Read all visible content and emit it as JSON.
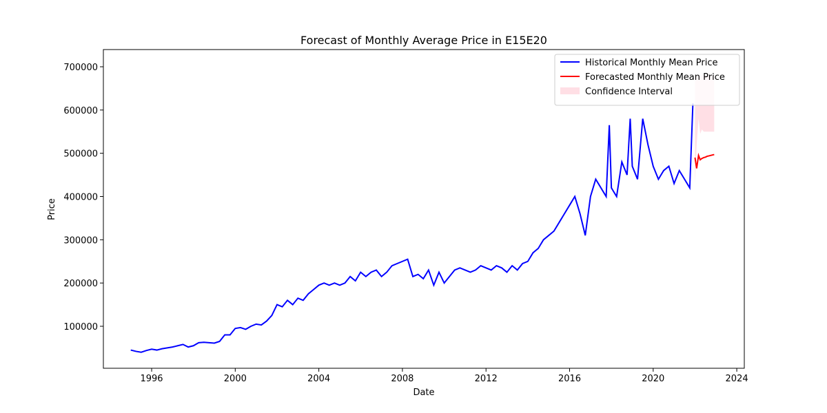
{
  "chart_data": {
    "type": "line",
    "title": "Forecast of Monthly Average Price in E15E20",
    "x_label": "Date",
    "y_label": "Price",
    "xlim": [
      1993.69,
      2024.36
    ],
    "ylim": [
      2900,
      739800
    ],
    "xticks": [
      1996,
      2000,
      2004,
      2008,
      2012,
      2016,
      2020,
      2024
    ],
    "yticks": [
      100000,
      200000,
      300000,
      400000,
      500000,
      600000,
      700000
    ],
    "legend": "upper right",
    "series": [
      {
        "name": "Historical Monthly Mean Price",
        "color": "#0000ff",
        "x": [
          1995.0,
          1995.25,
          1995.5,
          1995.75,
          1996.0,
          1996.25,
          1996.5,
          1996.75,
          1997.0,
          1997.25,
          1997.5,
          1997.75,
          1998.0,
          1998.25,
          1998.5,
          1998.75,
          1999.0,
          1999.25,
          1999.5,
          1999.75,
          2000.0,
          2000.25,
          2000.5,
          2000.75,
          2001.0,
          2001.25,
          2001.5,
          2001.75,
          2002.0,
          2002.25,
          2002.5,
          2002.75,
          2003.0,
          2003.25,
          2003.5,
          2003.75,
          2004.0,
          2004.25,
          2004.5,
          2004.75,
          2005.0,
          2005.25,
          2005.5,
          2005.75,
          2006.0,
          2006.25,
          2006.5,
          2006.75,
          2007.0,
          2007.25,
          2007.5,
          2007.75,
          2008.0,
          2008.25,
          2008.5,
          2008.75,
          2009.0,
          2009.25,
          2009.5,
          2009.75,
          2010.0,
          2010.25,
          2010.5,
          2010.75,
          2011.0,
          2011.25,
          2011.5,
          2011.75,
          2012.0,
          2012.25,
          2012.5,
          2012.75,
          2013.0,
          2013.25,
          2013.5,
          2013.75,
          2014.0,
          2014.25,
          2014.5,
          2014.75,
          2015.0,
          2015.25,
          2015.5,
          2015.75,
          2016.0,
          2016.25,
          2016.5,
          2016.75,
          2017.0,
          2017.25,
          2017.5,
          2017.75,
          2017.9,
          2018.0,
          2018.25,
          2018.5,
          2018.75,
          2018.9,
          2019.0,
          2019.25,
          2019.5,
          2019.75,
          2020.0,
          2020.25,
          2020.5,
          2020.75,
          2021.0,
          2021.25,
          2021.5,
          2021.75,
          2021.9
        ],
        "values": [
          45000,
          42000,
          40000,
          44000,
          47000,
          45000,
          48000,
          50000,
          52000,
          55000,
          58000,
          52000,
          55000,
          62000,
          63000,
          62000,
          61000,
          65000,
          80000,
          80000,
          95000,
          97000,
          93000,
          100000,
          105000,
          103000,
          112000,
          125000,
          150000,
          145000,
          160000,
          150000,
          165000,
          160000,
          175000,
          185000,
          195000,
          200000,
          195000,
          200000,
          195000,
          200000,
          215000,
          205000,
          225000,
          215000,
          225000,
          230000,
          215000,
          225000,
          240000,
          245000,
          250000,
          255000,
          215000,
          220000,
          210000,
          230000,
          195000,
          225000,
          200000,
          215000,
          230000,
          235000,
          230000,
          225000,
          230000,
          240000,
          235000,
          230000,
          240000,
          235000,
          225000,
          240000,
          230000,
          245000,
          250000,
          270000,
          280000,
          300000,
          310000,
          320000,
          340000,
          360000,
          380000,
          400000,
          360000,
          310000,
          400000,
          440000,
          420000,
          400000,
          565000,
          420000,
          400000,
          480000,
          450000,
          580000,
          470000,
          440000,
          580000,
          520000,
          470000,
          440000,
          460000,
          470000,
          430000,
          460000,
          440000,
          420000,
          615000
        ]
      },
      {
        "name": "Forecasted Monthly Mean Price",
        "color": "#ff0000",
        "x": [
          2022.0,
          2022.08,
          2022.17,
          2022.25,
          2022.33,
          2022.42,
          2022.5,
          2022.58,
          2022.67,
          2022.75,
          2022.83,
          2022.92
        ],
        "values": [
          490000,
          465000,
          495000,
          485000,
          488000,
          490000,
          491000,
          493000,
          494000,
          495000,
          496000,
          497000
        ]
      }
    ],
    "interval": {
      "name": "Confidence Interval",
      "color": "#ffc0cb",
      "x": [
        2022.0,
        2022.08,
        2022.17,
        2022.25,
        2022.33,
        2022.42,
        2022.5,
        2022.58,
        2022.67,
        2022.75,
        2022.83,
        2022.92
      ],
      "lower": [
        430000,
        520000,
        580000,
        545000,
        555000,
        550000,
        550000,
        550000,
        550000,
        550000,
        550000,
        550000
      ],
      "upper": [
        680000,
        680000,
        680000,
        680000,
        680000,
        680000,
        680000,
        680000,
        680000,
        680000,
        680000,
        680000
      ]
    }
  }
}
